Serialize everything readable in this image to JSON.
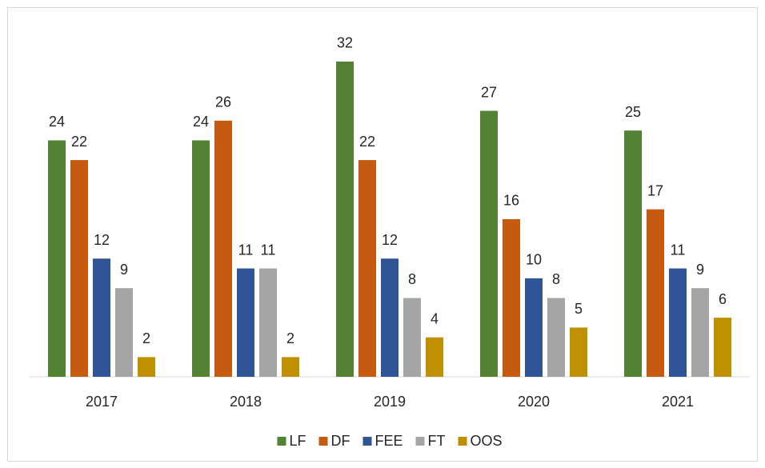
{
  "chart_data": {
    "type": "bar",
    "categories": [
      "2017",
      "2018",
      "2019",
      "2020",
      "2021"
    ],
    "series": [
      {
        "name": "LF",
        "color": "#548235",
        "values": [
          24,
          24,
          32,
          27,
          25
        ]
      },
      {
        "name": "DF",
        "color": "#c55a11",
        "values": [
          22,
          26,
          22,
          16,
          17
        ]
      },
      {
        "name": "FEE",
        "color": "#2f5597",
        "values": [
          12,
          11,
          12,
          10,
          11
        ]
      },
      {
        "name": "FT",
        "color": "#a5a5a5",
        "values": [
          9,
          11,
          8,
          8,
          9
        ]
      },
      {
        "name": "OOS",
        "color": "#bf9000",
        "values": [
          2,
          2,
          4,
          5,
          6
        ]
      }
    ],
    "ylim": [
      0,
      35
    ],
    "legend": "bottom"
  }
}
